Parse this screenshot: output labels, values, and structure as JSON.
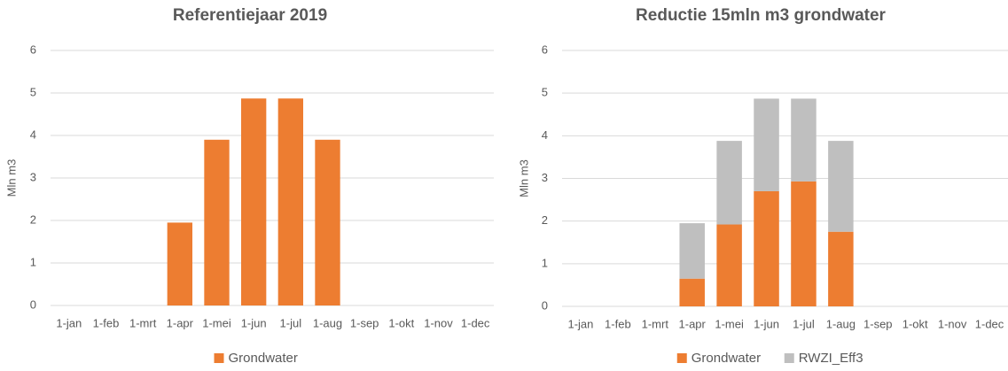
{
  "chart_data": [
    {
      "type": "bar",
      "title": "Referentiejaar 2019",
      "y_label": "Mln m3",
      "categories": [
        "1-jan",
        "1-feb",
        "1-mrt",
        "1-apr",
        "1-mei",
        "1-jun",
        "1-jul",
        "1-aug",
        "1-sep",
        "1-okt",
        "1-nov",
        "1-dec"
      ],
      "series": [
        {
          "name": "Grondwater",
          "color": "#ed7d31",
          "values": [
            0,
            0,
            0,
            1.95,
            3.9,
            4.87,
            4.87,
            3.9,
            0,
            0,
            0,
            0
          ]
        }
      ],
      "ylim": [
        0,
        6
      ],
      "yticks": [
        0,
        1,
        2,
        3,
        4,
        5,
        6
      ],
      "grid": true,
      "legend": "bottom"
    },
    {
      "type": "stacked_bar",
      "title": "Reductie 15mln m3 grondwater",
      "y_label": "Mln m3",
      "categories": [
        "1-jan",
        "1-feb",
        "1-mrt",
        "1-apr",
        "1-mei",
        "1-jun",
        "1-jul",
        "1-aug",
        "1-sep",
        "1-okt",
        "1-nov",
        "1-dec"
      ],
      "series": [
        {
          "name": "Grondwater",
          "color": "#ed7d31",
          "values": [
            0,
            0,
            0,
            0.65,
            1.92,
            2.7,
            2.93,
            1.75,
            0,
            0,
            0,
            0
          ]
        },
        {
          "name": "RWZI_Eff3",
          "color": "#bfbfbf",
          "values": [
            0,
            0,
            0,
            1.3,
            1.96,
            2.17,
            1.94,
            2.13,
            0,
            0,
            0,
            0
          ]
        }
      ],
      "ylim": [
        0,
        6
      ],
      "yticks": [
        0,
        1,
        2,
        3,
        4,
        5,
        6
      ],
      "grid": true,
      "legend": "bottom"
    }
  ]
}
